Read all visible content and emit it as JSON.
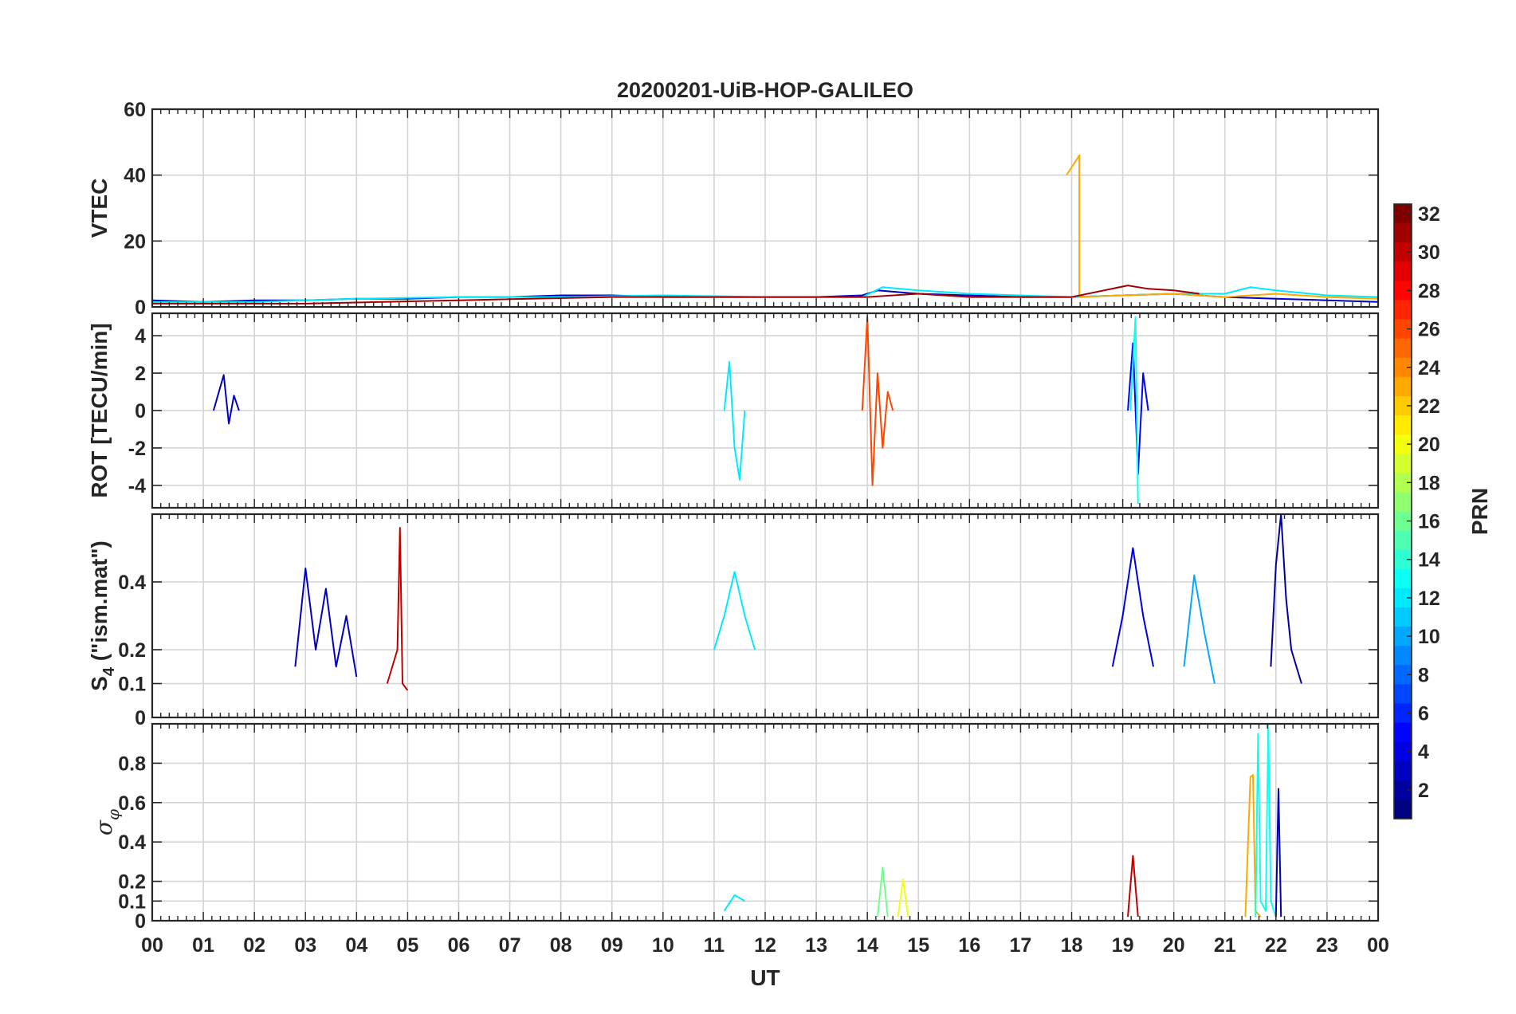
{
  "figure": {
    "title": "20200201-UiB-HOP-GALILEO",
    "xlabel": "UT"
  },
  "chart_data": {
    "type": "line",
    "title": "20200201-UiB-HOP-GALILEO",
    "xlabel": "UT",
    "x_tick_labels": [
      "00",
      "01",
      "02",
      "03",
      "04",
      "05",
      "06",
      "07",
      "08",
      "09",
      "10",
      "11",
      "12",
      "13",
      "14",
      "15",
      "16",
      "17",
      "18",
      "19",
      "20",
      "21",
      "22",
      "23",
      "00"
    ],
    "xlim_hours": [
      0,
      24
    ],
    "grid": true,
    "panels": [
      {
        "ylabel": "VTEC",
        "ylim": [
          0,
          60
        ],
        "yticks": [
          0,
          20,
          40,
          60
        ],
        "ytick_labels": [
          "0",
          "20",
          "40",
          "60"
        ],
        "series": [
          {
            "prn": 3,
            "x": [
              0,
              1,
              2,
              3,
              4,
              5,
              6,
              7,
              8,
              9,
              10,
              11,
              12,
              13,
              13.9,
              14.2,
              15,
              16,
              17,
              18,
              19,
              20,
              21,
              22,
              23,
              24
            ],
            "y": [
              2,
              1.5,
              2,
              2,
              2.5,
              2.5,
              3,
              3,
              3.5,
              3.5,
              3,
              3,
              3,
              3,
              3.5,
              5,
              4,
              3.5,
              3,
              3,
              3.5,
              4,
              3,
              2.5,
              2,
              1.5
            ]
          },
          {
            "prn": 12,
            "x": [
              0,
              2,
              4,
              6,
              8,
              10,
              12,
              13.9,
              14.3,
              15,
              16,
              18,
              20,
              21,
              21.5,
              22,
              23,
              24
            ],
            "y": [
              1.5,
              1.5,
              2.5,
              3,
              3,
              3.5,
              3,
              3,
              6,
              5,
              4,
              3,
              4,
              4,
              6,
              5,
              3.5,
              3
            ]
          },
          {
            "prn": 23,
            "x": [
              17.9,
              18.15,
              18.15,
              18.2,
              19,
              20,
              21,
              22,
              23,
              24
            ],
            "y": [
              40,
              46,
              3,
              3,
              3.5,
              4,
              3,
              4,
              3,
              2.5
            ]
          },
          {
            "prn": 31,
            "x": [
              0,
              3,
              6,
              9,
              12,
              14,
              15,
              16,
              18,
              19.1,
              19.5,
              20,
              20.5
            ],
            "y": [
              1,
              1,
              2,
              3,
              3,
              3,
              4,
              3,
              3,
              6.5,
              5.5,
              5,
              4
            ]
          }
        ]
      },
      {
        "ylabel": "ROT [TECU/min]",
        "ylim": [
          -5.2,
          5.2
        ],
        "yticks": [
          -4,
          -2,
          0,
          2,
          4
        ],
        "ytick_labels": [
          "-4",
          "-2",
          "0",
          "2",
          "4"
        ],
        "series": [
          {
            "prn": 26,
            "x": [
              13.9,
              14,
              14.1,
              14.2,
              14.3,
              14.4,
              14.5
            ],
            "y": [
              0,
              5,
              -4,
              2,
              -2,
              1,
              0
            ]
          },
          {
            "prn": 12,
            "x": [
              11.2,
              11.3,
              11.4,
              11.5,
              11.6
            ],
            "y": [
              0,
              2.6,
              -2,
              -3.7,
              0
            ]
          },
          {
            "prn": 5,
            "x": [
              19.1,
              19.2,
              19.3,
              19.4,
              19.5
            ],
            "y": [
              0,
              3.6,
              -3.4,
              2,
              0
            ]
          },
          {
            "prn": 13,
            "x": [
              19.15,
              19.25,
              19.3
            ],
            "y": [
              0,
              5,
              -5
            ]
          },
          {
            "prn": 3,
            "x": [
              1.2,
              1.4,
              1.5,
              1.6,
              1.7
            ],
            "y": [
              0,
              1.9,
              -0.7,
              0.8,
              0
            ]
          }
        ]
      },
      {
        "ylabel": "S_4 (\"ism.mat\")",
        "ylim": [
          0,
          0.6
        ],
        "yticks": [
          0,
          0.1,
          0.2,
          0.4
        ],
        "ytick_labels": [
          "0",
          "0.1",
          "0.2",
          "0.4"
        ],
        "series": [
          {
            "prn": 3,
            "x": [
              2.8,
              3.0,
              3.2,
              3.4,
              3.6,
              3.8,
              4.0
            ],
            "y": [
              0.15,
              0.44,
              0.2,
              0.38,
              0.15,
              0.3,
              0.12
            ]
          },
          {
            "prn": 30,
            "x": [
              4.6,
              4.8,
              4.85,
              4.9,
              5.0
            ],
            "y": [
              0.1,
              0.2,
              0.56,
              0.1,
              0.08
            ]
          },
          {
            "prn": 12,
            "x": [
              11.0,
              11.2,
              11.4,
              11.6,
              11.8
            ],
            "y": [
              0.2,
              0.3,
              0.43,
              0.3,
              0.2
            ]
          },
          {
            "prn": 4,
            "x": [
              18.8,
              19.0,
              19.2,
              19.4,
              19.6
            ],
            "y": [
              0.15,
              0.3,
              0.5,
              0.3,
              0.15
            ]
          },
          {
            "prn": 2,
            "x": [
              21.9,
              22.0,
              22.1,
              22.2,
              22.3,
              22.5
            ],
            "y": [
              0.15,
              0.45,
              0.6,
              0.35,
              0.2,
              0.1
            ]
          },
          {
            "prn": 10,
            "x": [
              20.2,
              20.4,
              20.6,
              20.8
            ],
            "y": [
              0.15,
              0.42,
              0.25,
              0.1
            ]
          }
        ]
      },
      {
        "ylabel": "σ_φ",
        "ylim": [
          0,
          1
        ],
        "yticks": [
          0,
          0.1,
          0.2,
          0.4,
          0.6,
          0.8
        ],
        "ytick_labels": [
          "0",
          "0.1",
          "0.2",
          "0.4",
          "0.6",
          "0.8"
        ],
        "series": [
          {
            "prn": 23,
            "x": [
              21.4,
              21.5,
              21.55,
              21.6,
              21.7
            ],
            "y": [
              0.02,
              0.73,
              0.74,
              0.05,
              0.02
            ]
          },
          {
            "prn": 13,
            "x": [
              21.6,
              21.65,
              21.7,
              21.8,
              21.85,
              21.9,
              22.0
            ],
            "y": [
              0.02,
              0.95,
              0.1,
              0.05,
              1.0,
              0.1,
              0.02
            ]
          },
          {
            "prn": 3,
            "x": [
              22.0,
              22.05,
              22.1
            ],
            "y": [
              0.02,
              0.67,
              0.02
            ]
          },
          {
            "prn": 30,
            "x": [
              19.1,
              19.2,
              19.3
            ],
            "y": [
              0.02,
              0.33,
              0.02
            ]
          },
          {
            "prn": 20,
            "x": [
              14.6,
              14.7,
              14.8
            ],
            "y": [
              0.02,
              0.21,
              0.02
            ]
          },
          {
            "prn": 16,
            "x": [
              14.2,
              14.3,
              14.4
            ],
            "y": [
              0.02,
              0.27,
              0.02
            ]
          },
          {
            "prn": 12,
            "x": [
              11.2,
              11.4,
              11.6
            ],
            "y": [
              0.05,
              0.13,
              0.1
            ]
          }
        ]
      }
    ],
    "colorbar": {
      "label": "PRN",
      "range": [
        1,
        32
      ],
      "ticks": [
        2,
        4,
        6,
        8,
        10,
        12,
        14,
        16,
        18,
        20,
        22,
        24,
        26,
        28,
        30,
        32
      ],
      "tick_labels": [
        "2",
        "4",
        "6",
        "8",
        "10",
        "12",
        "14",
        "16",
        "18",
        "20",
        "22",
        "24",
        "26",
        "28",
        "30",
        "32"
      ],
      "colormap": "jet"
    }
  }
}
